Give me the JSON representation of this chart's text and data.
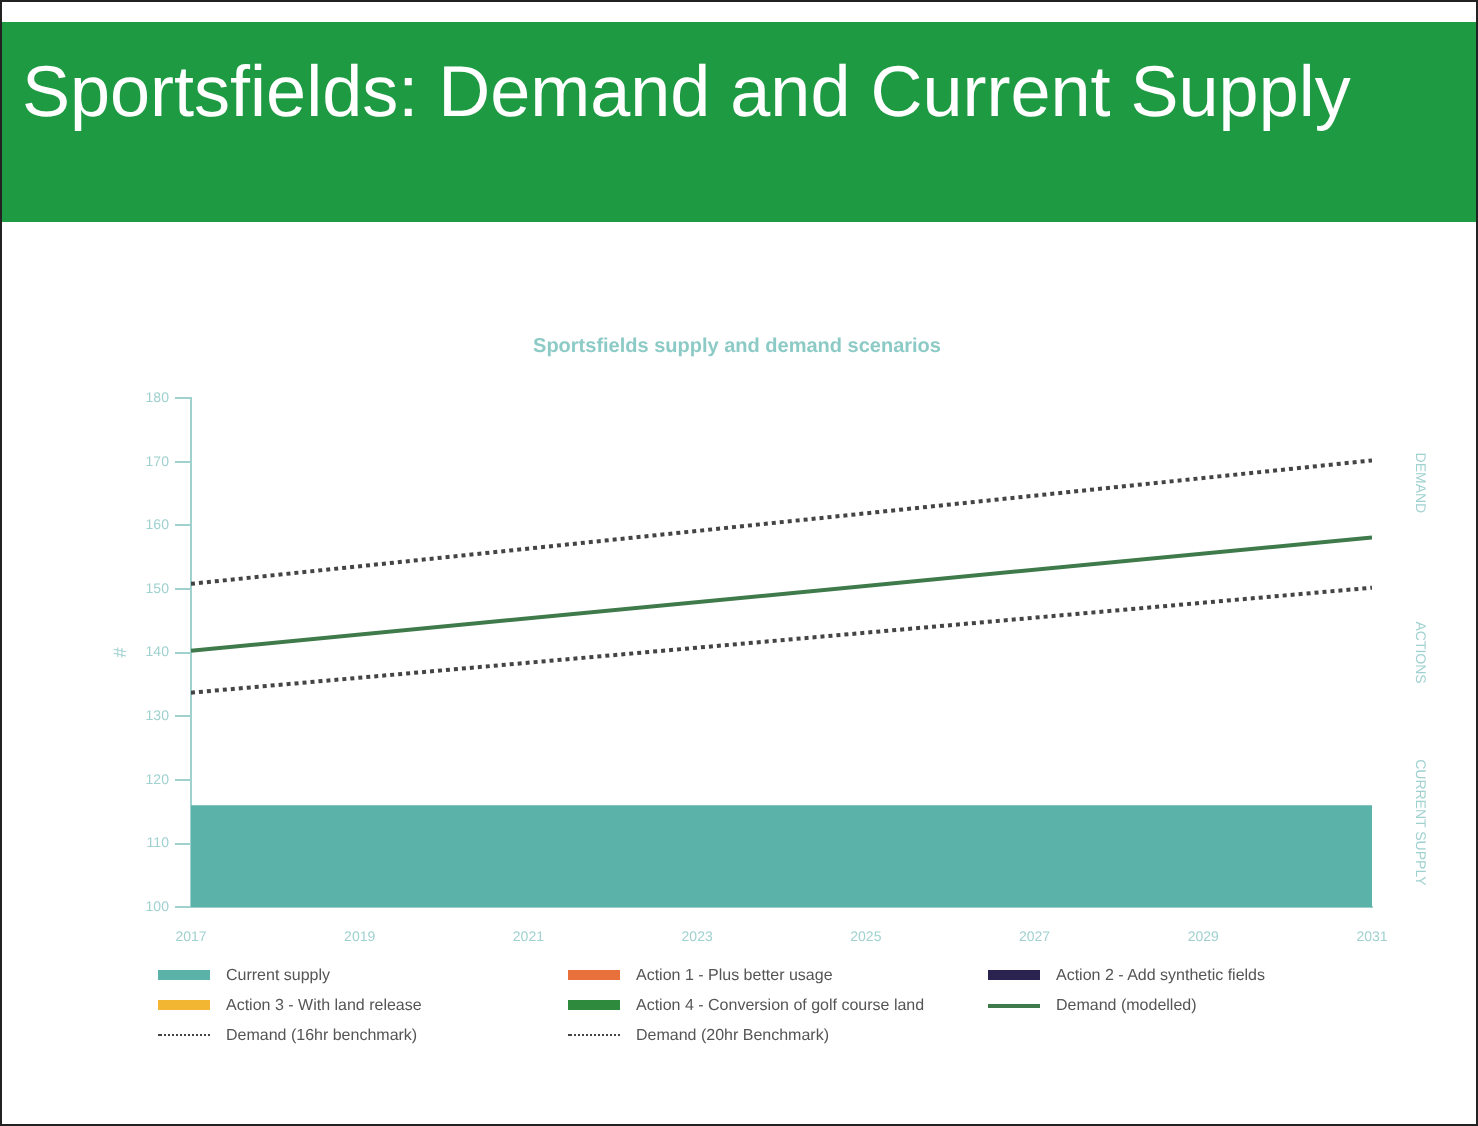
{
  "chart_data": {
    "type": "line",
    "title": "Sportsfields: Demand and Current Supply",
    "subtitle": "Sportsfields supply and demand scenarios",
    "ylabel": "#",
    "x": [
      2017,
      2031
    ],
    "xlim": [
      2017,
      2031
    ],
    "xticks": [
      2017,
      2019,
      2021,
      2023,
      2025,
      2027,
      2029,
      2031
    ],
    "ylim": [
      100,
      180
    ],
    "yticks": [
      100,
      110,
      120,
      130,
      140,
      150,
      160,
      170,
      180
    ],
    "grid": false,
    "legend": "bottom",
    "series": [
      {
        "name": "Current supply",
        "type": "area",
        "color": "#5bb2a8",
        "values": [
          116,
          116
        ]
      },
      {
        "name": "Action 1 - Plus better usage",
        "color": "#e8703a",
        "values": [
          null,
          null
        ]
      },
      {
        "name": "Action 2 - Add synthetic fields",
        "color": "#2a2350",
        "values": [
          null,
          null
        ]
      },
      {
        "name": "Action 3 - With land release",
        "color": "#f2b632",
        "values": [
          null,
          null
        ]
      },
      {
        "name": "Action 4 - Conversion of golf course land",
        "color": "#2e8b3e",
        "values": [
          null,
          null
        ]
      },
      {
        "name": "Demand (modelled)",
        "color": "#3f7a4a",
        "line_style": "solid",
        "values": [
          140.3,
          158.1
        ]
      },
      {
        "name": "Demand (16hr benchmark)",
        "color": "#444444",
        "line_style": "dotted",
        "values": [
          150.8,
          170.2
        ]
      },
      {
        "name": "Demand (20hr Benchmark)",
        "color": "#444444",
        "line_style": "dotted",
        "values": [
          133.7,
          150.2
        ]
      }
    ],
    "annotations": [
      "DEMAND",
      "ACTIONS",
      "CURRENT SUPPLY"
    ]
  }
}
